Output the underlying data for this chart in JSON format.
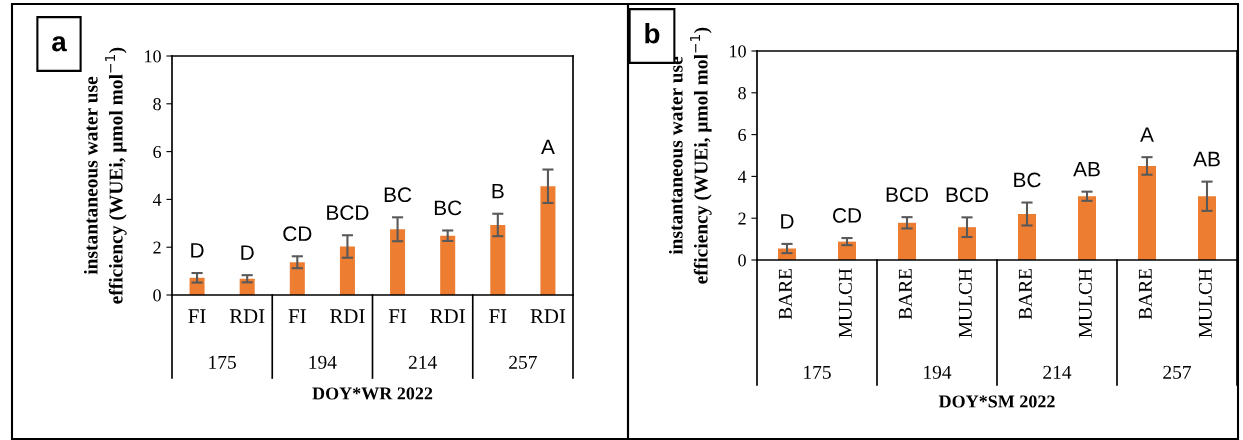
{
  "chart_data": [
    {
      "type": "bar",
      "title": "a",
      "ylabel": "instantaneous water use\nefficiency (WUEi, μmol mol$^{−1}$)",
      "xlabel": "DOY*WR 2022",
      "categories": [
        "FI",
        "RDI",
        "FI",
        "RDI",
        "FI",
        "RDI",
        "FI",
        "RDI"
      ],
      "values": [
        0.72,
        0.68,
        1.37,
        2.03,
        2.75,
        2.48,
        2.93,
        4.55
      ],
      "errors": [
        0.2,
        0.15,
        0.25,
        0.47,
        0.5,
        0.22,
        0.47,
        0.7
      ],
      "value_labels": [
        "D",
        "D",
        "CD",
        "BCD",
        "BC",
        "BC",
        "B",
        "A"
      ],
      "annotations": [
        "175",
        "194",
        "214",
        "257"
      ],
      "color": "#ed7d31",
      "ylim": [
        0,
        10
      ],
      "yticks": [
        0,
        2,
        4,
        6,
        8,
        10
      ],
      "grid": false,
      "legend": false
    },
    {
      "type": "bar",
      "title": "b",
      "ylabel": "instantaneous water use\nefficiency (WUEi, μmol mol$^{−1}$)",
      "xlabel": "DOY*SM 2022",
      "categories": [
        "BARE",
        "MULCH",
        "BARE",
        "MULCH",
        "BARE",
        "MULCH",
        "BARE",
        "MULCH"
      ],
      "values": [
        0.55,
        0.88,
        1.78,
        1.57,
        2.2,
        3.05,
        4.5,
        3.05
      ],
      "errors": [
        0.22,
        0.17,
        0.27,
        0.47,
        0.55,
        0.22,
        0.42,
        0.7
      ],
      "value_labels": [
        "D",
        "CD",
        "BCD",
        "BCD",
        "BC",
        "AB",
        "A",
        "AB"
      ],
      "annotations": [
        "175",
        "194",
        "214",
        "257"
      ],
      "color": "#ed7d31",
      "ylim": [
        0,
        10
      ],
      "yticks": [
        0,
        2,
        4,
        6,
        8,
        10
      ],
      "grid": false,
      "legend": false
    }
  ]
}
